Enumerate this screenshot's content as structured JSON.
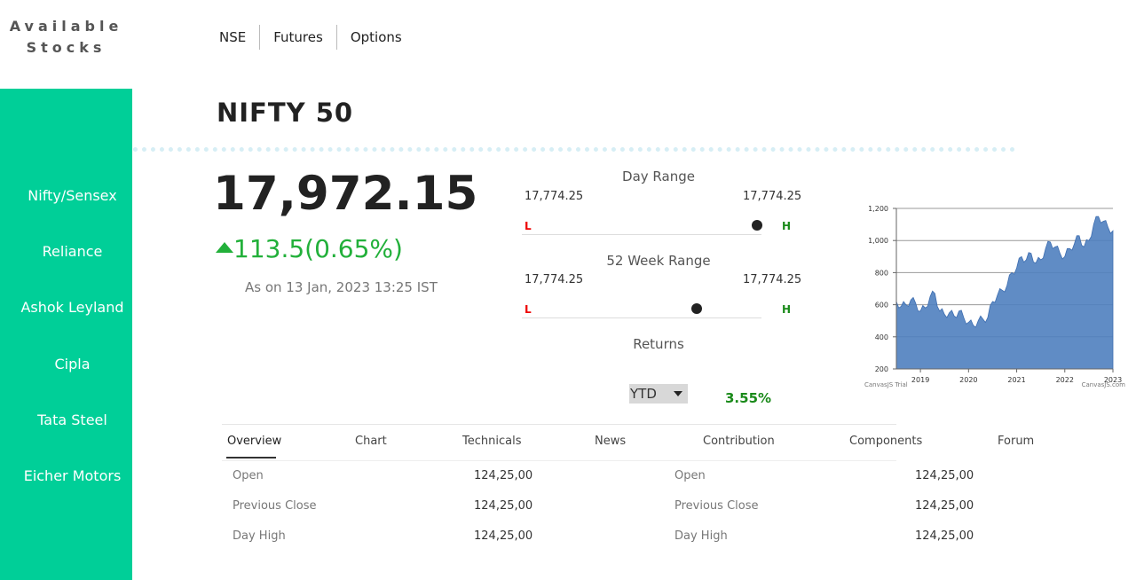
{
  "brand": {
    "line1": "Available",
    "line2": "Stocks"
  },
  "sidebar": {
    "items": [
      {
        "label": "Nifty/Sensex"
      },
      {
        "label": "Reliance"
      },
      {
        "label": "Ashok Leyland"
      },
      {
        "label": "Cipla"
      },
      {
        "label": "Tata Steel"
      },
      {
        "label": "Eicher Motors"
      }
    ]
  },
  "topnav": {
    "items": [
      {
        "label": "NSE"
      },
      {
        "label": "Futures"
      },
      {
        "label": "Options"
      }
    ]
  },
  "page": {
    "title": "NIFTY 50"
  },
  "quote": {
    "price": "17,972.15",
    "change": "113.5(0.65%)",
    "as_of": "As on 13 Jan, 2023 13:25 IST"
  },
  "day_range": {
    "title": "Day Range",
    "low": "17,774.25",
    "high": "17,774.25",
    "low_label": "L",
    "high_label": "H",
    "position_fraction": 0.98
  },
  "week52_range": {
    "title": "52 Week Range",
    "low": "17,774.25",
    "high": "17,774.25",
    "low_label": "L",
    "high_label": "H",
    "position_fraction": 0.73
  },
  "returns": {
    "title": "Returns",
    "period": "YTD",
    "value": "3.55%"
  },
  "tabs": [
    {
      "label": "Overview"
    },
    {
      "label": "Chart"
    },
    {
      "label": "Technicals"
    },
    {
      "label": "News"
    },
    {
      "label": "Contribution"
    },
    {
      "label": "Components"
    },
    {
      "label": "Forum"
    }
  ],
  "overview_left": [
    {
      "label": "Open",
      "value": "124,25,00"
    },
    {
      "label": "Previous Close",
      "value": "124,25,00"
    },
    {
      "label": "Day High",
      "value": "124,25,00"
    }
  ],
  "overview_right": [
    {
      "label": "Open",
      "value": "124,25,00"
    },
    {
      "label": "Previous Close",
      "value": "124,25,00"
    },
    {
      "label": "Day High",
      "value": "124,25,00"
    }
  ],
  "colors": {
    "sidebar": "#00cf98",
    "positive": "#22b03a",
    "low_marker": "#e00000",
    "high_marker": "#1a8a1a",
    "chart_fill": "#4f7fbf"
  },
  "chart_data": {
    "type": "area",
    "x": [
      2018.5,
      2018.6,
      2018.7,
      2018.8,
      2018.9,
      2019.0,
      2019.1,
      2019.2,
      2019.3,
      2019.4,
      2019.5,
      2019.6,
      2019.7,
      2019.8,
      2019.9,
      2020.0,
      2020.1,
      2020.2,
      2020.3,
      2020.4,
      2020.5,
      2020.6,
      2020.7,
      2020.8,
      2020.9,
      2021.0,
      2021.1,
      2021.2,
      2021.3,
      2021.4,
      2021.5,
      2021.6,
      2021.7,
      2021.8,
      2021.9,
      2022.0,
      2022.1,
      2022.2,
      2022.3,
      2022.4,
      2022.5,
      2022.6,
      2022.7,
      2022.8,
      2022.9,
      2023.0
    ],
    "y": [
      620,
      590,
      600,
      630,
      610,
      560,
      580,
      650,
      670,
      560,
      540,
      550,
      530,
      560,
      520,
      490,
      470,
      500,
      510,
      520,
      620,
      660,
      690,
      720,
      800,
      830,
      900,
      880,
      920,
      860,
      880,
      950,
      990,
      960,
      920,
      900,
      950,
      980,
      1030,
      960,
      1000,
      1100,
      1150,
      1120,
      1080,
      1060
    ],
    "xticks": [
      "2019",
      "2020",
      "2021",
      "2022",
      "2023"
    ],
    "xtick_values": [
      2019,
      2020,
      2021,
      2022,
      2023
    ],
    "yticks": [
      "200",
      "400",
      "600",
      "800",
      "1,000",
      "1,200"
    ],
    "ytick_values": [
      200,
      400,
      600,
      800,
      1000,
      1200
    ],
    "ylim": [
      200,
      1200
    ],
    "xlim": [
      2018.5,
      2023.0
    ],
    "grid": true,
    "credit_left": "CanvasJS Trial",
    "credit_right": "CanvasJS.com"
  }
}
